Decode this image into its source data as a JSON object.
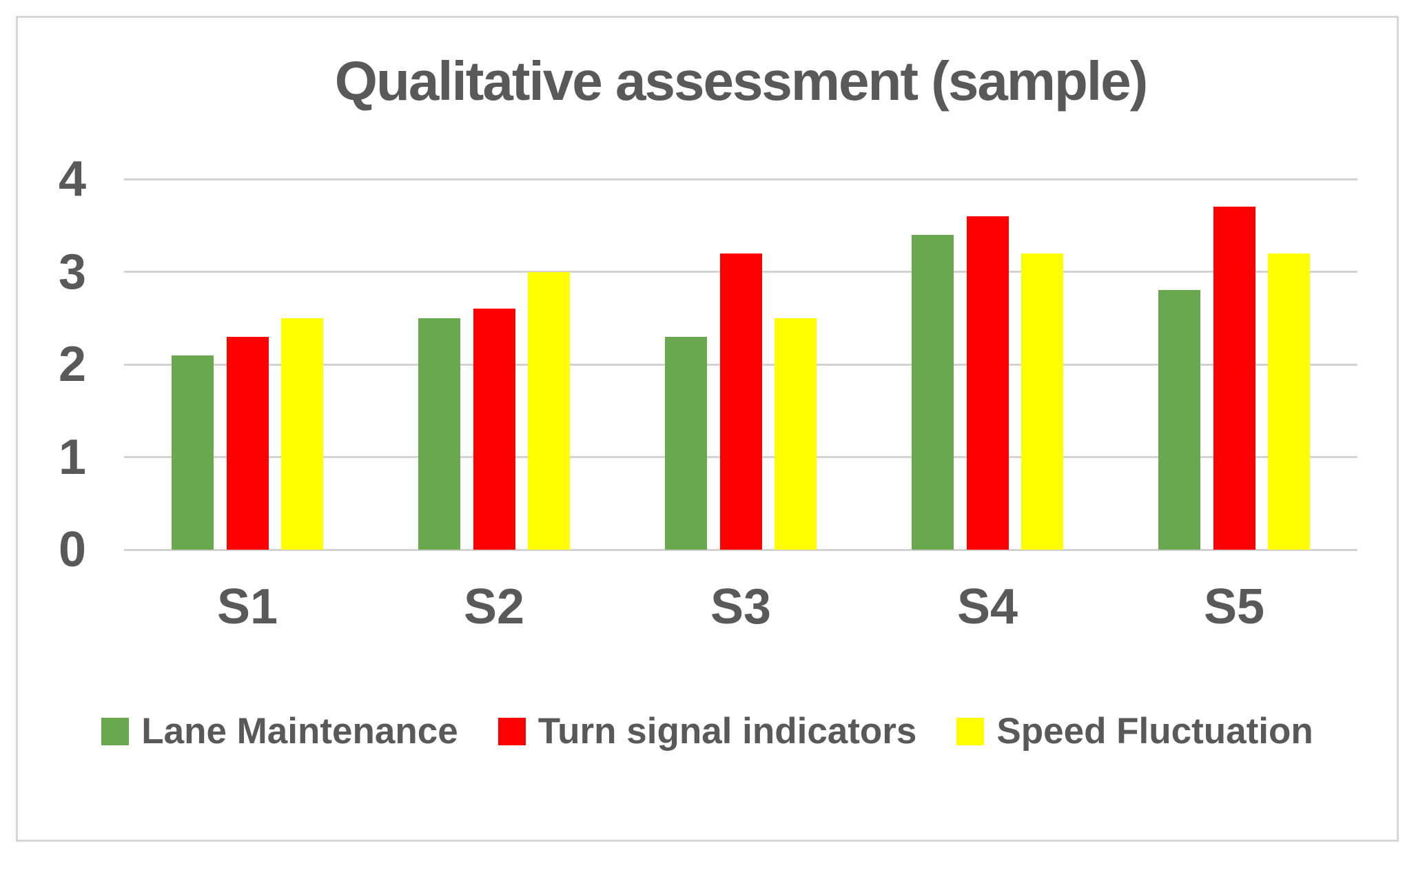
{
  "chart_data": {
    "type": "bar",
    "title": "Qualitative assessment (sample)",
    "categories": [
      "S1",
      "S2",
      "S3",
      "S4",
      "S5"
    ],
    "series": [
      {
        "name": "Lane Maintenance",
        "color": "#6AA84F",
        "values": [
          2.1,
          2.5,
          2.3,
          3.4,
          2.8
        ]
      },
      {
        "name": "Turn signal indicators",
        "color": "#FF0000",
        "values": [
          2.3,
          2.6,
          3.2,
          3.6,
          3.7
        ]
      },
      {
        "name": "Speed Fluctuation",
        "color": "#FFFF00",
        "values": [
          2.5,
          3.0,
          2.5,
          3.2,
          3.2
        ]
      }
    ],
    "xlabel": "",
    "ylabel": "",
    "ylim": [
      0,
      4
    ],
    "yticks": [
      4,
      3,
      2,
      1,
      0
    ],
    "grid": true,
    "legend_position": "bottom"
  },
  "styles": {
    "text_color": "#595959",
    "grid_color": "#D3D3D3",
    "frame_border_color": "#D7D7D7",
    "background": "#FFFFFF"
  }
}
